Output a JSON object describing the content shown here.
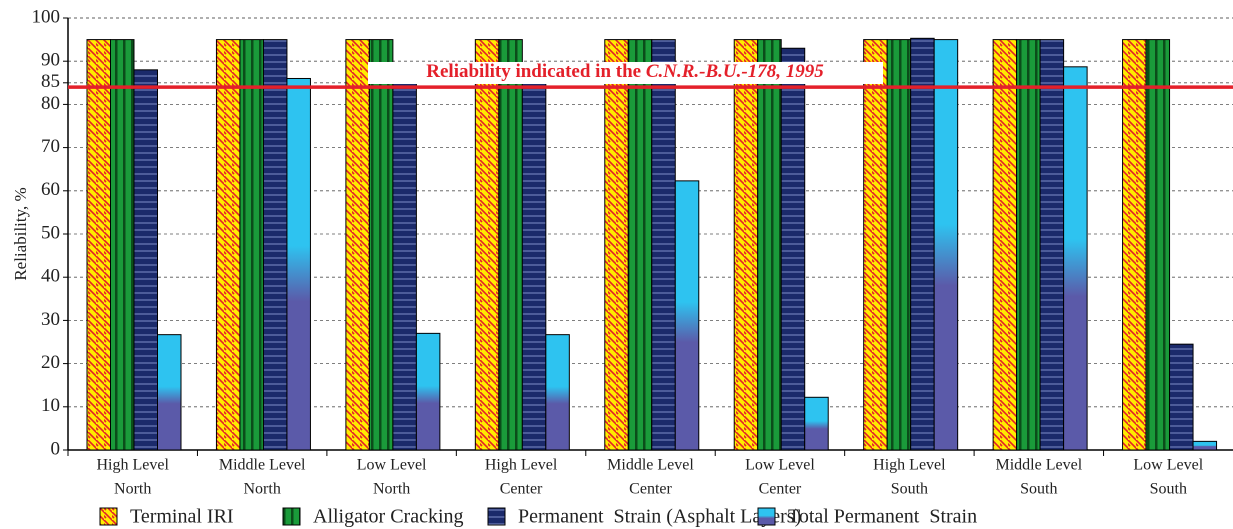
{
  "chart_data": {
    "type": "bar",
    "y_label": "Reliability, %",
    "categories": [
      [
        "High  Level",
        "North"
      ],
      [
        "Middle Level",
        "North"
      ],
      [
        "Low  Level",
        "North"
      ],
      [
        "High Level",
        "Center"
      ],
      [
        "Middle  Level",
        "Center"
      ],
      [
        "Low  Level",
        "Center"
      ],
      [
        "High  Level",
        "South"
      ],
      [
        "Middle  Level",
        "South"
      ],
      [
        "Low  Level",
        "South"
      ]
    ],
    "series": [
      {
        "name": "Terminal IRI",
        "color": "#ffec00",
        "pattern": "hatch",
        "values": [
          95,
          95,
          95,
          95,
          95,
          95,
          95,
          95,
          95
        ]
      },
      {
        "name": "Alligator Cracking",
        "color": "#1a9b3a",
        "pattern": "vstripe",
        "values": [
          95,
          95,
          95,
          95,
          95,
          95,
          95,
          95,
          95
        ]
      },
      {
        "name": "Permanent  Strain (Asphalt Layers)",
        "color": "#1b2a6b",
        "pattern": "hstripe",
        "values": [
          88,
          95,
          85,
          85,
          95,
          93,
          95.3,
          95,
          24.5
        ]
      },
      {
        "name": "Total Permanent  Strain",
        "color": "#2ec3f0",
        "pattern": "gradient",
        "values": [
          26.7,
          86,
          27,
          26.7,
          62.3,
          12.2,
          95,
          88.7,
          2
        ]
      }
    ],
    "annotation": {
      "text": "Reliability indicated in the",
      "source": "C.N.R.-B.U.-178, 1995",
      "value": 84,
      "color": "#e4202a"
    },
    "ylim": [
      0,
      100
    ],
    "yticks": [
      0,
      10,
      20,
      30,
      40,
      50,
      60,
      70,
      80,
      85,
      90,
      100
    ],
    "grid": true
  }
}
